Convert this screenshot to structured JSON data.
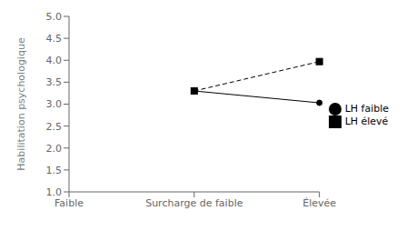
{
  "chart_data": {
    "type": "line",
    "categories": [
      "Faible",
      "Surcharge de faible",
      "Élevée"
    ],
    "series": [
      {
        "name": "LH faible",
        "color": "#000000",
        "values": [
          null,
          3.3,
          3.03
        ],
        "marker": "circle",
        "line_style": "solid"
      },
      {
        "name": "LH élevé",
        "color": "#000000",
        "values": [
          null,
          3.3,
          3.97
        ],
        "marker": "square",
        "line_style": "dashed"
      }
    ],
    "y_label": "Habilitation psychologique",
    "ylim": [
      1,
      5
    ],
    "yticks": [
      {
        "value": 1,
        "label": "1.0"
      },
      {
        "value": 1.5,
        "label": "1.5"
      },
      {
        "value": 2,
        "label": "2.0"
      },
      {
        "value": 2.5,
        "label": "2.5"
      },
      {
        "value": 3,
        "label": "3.0"
      },
      {
        "value": 3.5,
        "label": "3.5"
      },
      {
        "value": 4,
        "label": "4.0"
      },
      {
        "value": 4.5,
        "label": "4.5"
      },
      {
        "value": 5,
        "label": "5.0"
      }
    ],
    "legend": "right",
    "grid": false
  }
}
